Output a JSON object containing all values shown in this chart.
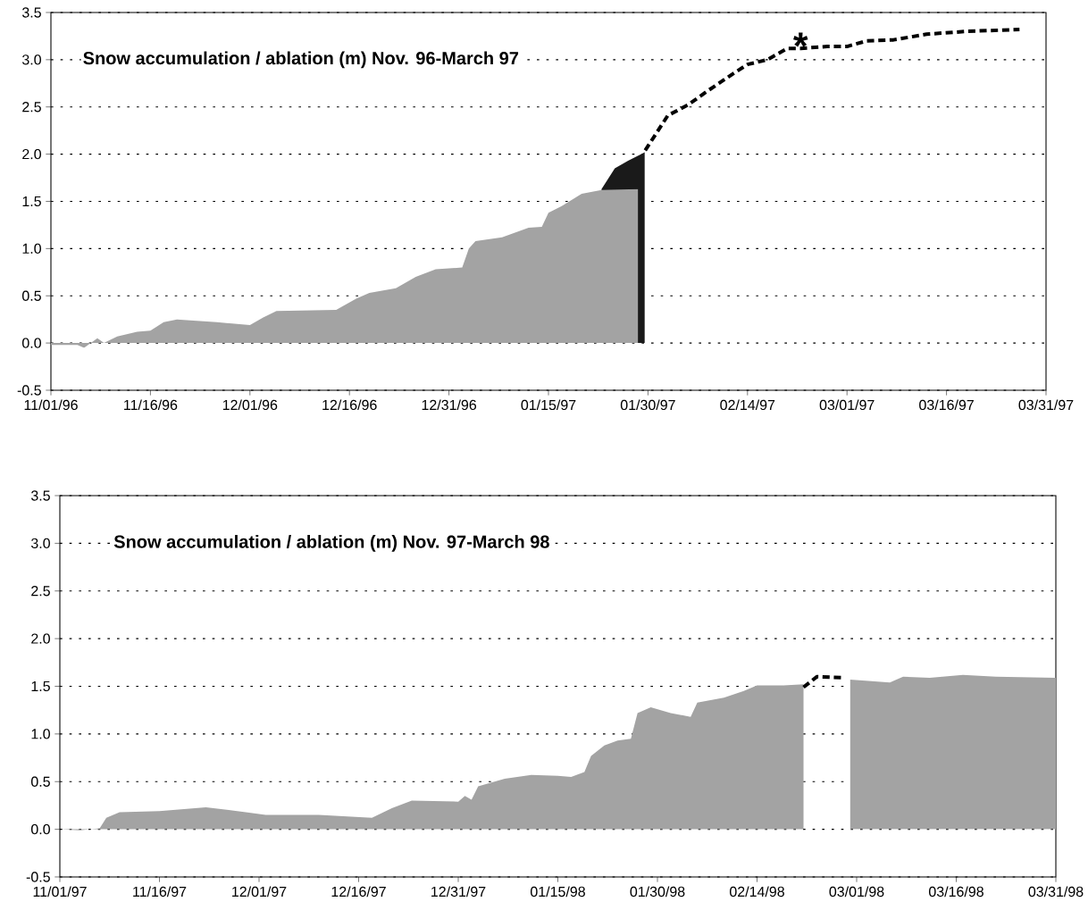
{
  "chart_data": [
    {
      "type": "area",
      "title": "Snow accumulation / ablation (m) Nov. 96-March 97",
      "xlim": [
        "1996-11-01",
        "1997-03-31"
      ],
      "ylim": [
        -0.5,
        3.5
      ],
      "grid": "y",
      "xticks": [
        {
          "value": "1996-11-01",
          "label": "11/01/96"
        },
        {
          "value": "1996-11-16",
          "label": "11/16/96"
        },
        {
          "value": "1996-12-01",
          "label": "12/01/96"
        },
        {
          "value": "1996-12-16",
          "label": "12/16/96"
        },
        {
          "value": "1996-12-31",
          "label": "12/31/96"
        },
        {
          "value": "1997-01-15",
          "label": "01/15/97"
        },
        {
          "value": "1997-01-30",
          "label": "01/30/97"
        },
        {
          "value": "1997-02-14",
          "label": "02/14/97"
        },
        {
          "value": "1997-03-01",
          "label": "03/01/97"
        },
        {
          "value": "1997-03-16",
          "label": "03/16/97"
        },
        {
          "value": "1997-03-31",
          "label": "03/31/97"
        }
      ],
      "yticks": [
        {
          "value": -0.5,
          "label": "-0.5"
        },
        {
          "value": 0,
          "label": "0.0"
        },
        {
          "value": 0.5,
          "label": "0.5"
        },
        {
          "value": 1,
          "label": "1.0"
        },
        {
          "value": 1.5,
          "label": "1.5"
        },
        {
          "value": 2,
          "label": "2.0"
        },
        {
          "value": 2.5,
          "label": "2.5"
        },
        {
          "value": 3,
          "label": "3.0"
        },
        {
          "value": 3.5,
          "label": "3.5"
        }
      ],
      "annotations": [
        {
          "text": "*",
          "x": "1997-02-22",
          "y": 3.12
        }
      ],
      "series": [
        {
          "color": "#1a1a1a",
          "x": [
            "1997-01-23",
            "1997-01-25",
            "1997-01-27",
            "1997-01-29",
            "1997-01-29T12:00"
          ],
          "values": [
            1.63,
            1.85,
            1.93,
            2.0,
            2.02
          ]
        },
        {
          "color": "#a3a3a3",
          "x": [
            "1996-11-01",
            "1996-11-05",
            "1996-11-06",
            "1996-11-08",
            "1996-11-09",
            "1996-11-11",
            "1996-11-14",
            "1996-11-16",
            "1996-11-18",
            "1996-11-20",
            "1996-11-26",
            "1996-12-01",
            "1996-12-03",
            "1996-12-05",
            "1996-12-14",
            "1996-12-17",
            "1996-12-19",
            "1996-12-23",
            "1996-12-26",
            "1996-12-29",
            "1997-01-02",
            "1997-01-03",
            "1997-01-04",
            "1997-01-08",
            "1997-01-12",
            "1997-01-14",
            "1997-01-15",
            "1997-01-17",
            "1997-01-20",
            "1997-01-23",
            "1997-01-28T12:00"
          ],
          "values": [
            -0.02,
            -0.02,
            -0.05,
            0.05,
            0.0,
            0.07,
            0.12,
            0.13,
            0.22,
            0.25,
            0.22,
            0.19,
            0.27,
            0.34,
            0.35,
            0.47,
            0.53,
            0.58,
            0.7,
            0.78,
            0.8,
            1.0,
            1.08,
            1.12,
            1.22,
            1.23,
            1.38,
            1.45,
            1.58,
            1.62,
            1.63
          ]
        },
        {
          "type": "line",
          "line_style": "dashed",
          "color": "#000000",
          "x": [
            "1997-01-29T14:00",
            "1997-02-02",
            "1997-02-05",
            "1997-02-08",
            "1997-02-12",
            "1997-02-14",
            "1997-02-17",
            "1997-02-20",
            "1997-02-22",
            "1997-02-26",
            "1997-03-01",
            "1997-03-04",
            "1997-03-08",
            "1997-03-13",
            "1997-03-19",
            "1997-03-27"
          ],
          "values": [
            2.04,
            2.41,
            2.52,
            2.67,
            2.86,
            2.95,
            3.0,
            3.12,
            3.12,
            3.14,
            3.14,
            3.2,
            3.21,
            3.27,
            3.3,
            3.32
          ]
        }
      ]
    },
    {
      "type": "area",
      "title": "Snow accumulation / ablation (m) Nov. 97-March 98",
      "xlim": [
        "1997-11-01",
        "1998-03-31"
      ],
      "ylim": [
        -0.5,
        3.5
      ],
      "grid": "y",
      "xticks": [
        {
          "value": "1997-11-01",
          "label": "11/01/97"
        },
        {
          "value": "1997-11-16",
          "label": "11/16/97"
        },
        {
          "value": "1997-12-01",
          "label": "12/01/97"
        },
        {
          "value": "1997-12-16",
          "label": "12/16/97"
        },
        {
          "value": "1997-12-31",
          "label": "12/31/97"
        },
        {
          "value": "1998-01-15",
          "label": "01/15/98"
        },
        {
          "value": "1998-01-30",
          "label": "01/30/98"
        },
        {
          "value": "1998-02-14",
          "label": "02/14/98"
        },
        {
          "value": "1998-03-01",
          "label": "03/01/98"
        },
        {
          "value": "1998-03-16",
          "label": "03/16/98"
        },
        {
          "value": "1998-03-31",
          "label": "03/31/98"
        }
      ],
      "yticks": [
        {
          "value": -0.5,
          "label": "-0.5"
        },
        {
          "value": 0,
          "label": "0.0"
        },
        {
          "value": 0.5,
          "label": "0.5"
        },
        {
          "value": 1,
          "label": "1.0"
        },
        {
          "value": 1.5,
          "label": "1.5"
        },
        {
          "value": 2,
          "label": "2.0"
        },
        {
          "value": 2.5,
          "label": "2.5"
        },
        {
          "value": 3,
          "label": "3.0"
        },
        {
          "value": 3.5,
          "label": "3.5"
        }
      ],
      "series": [
        {
          "color": "#a3a3a3",
          "x": [
            "1997-11-01",
            "1997-11-04",
            "1997-11-07",
            "1997-11-08",
            "1997-11-10",
            "1997-11-16",
            "1997-11-23",
            "1997-11-29",
            "1997-12-02",
            "1997-12-10",
            "1997-12-18",
            "1997-12-21",
            "1997-12-24",
            "1997-12-31",
            "1998-01-01",
            "1998-01-02",
            "1998-01-03",
            "1998-01-07",
            "1998-01-11",
            "1998-01-15",
            "1998-01-17",
            "1998-01-19",
            "1998-01-20",
            "1998-01-22",
            "1998-01-24",
            "1998-01-26",
            "1998-01-27",
            "1998-01-29",
            "1998-02-01",
            "1998-02-04",
            "1998-02-05",
            "1998-02-09",
            "1998-02-12",
            "1998-02-14",
            "1998-02-18",
            "1998-02-21",
            "1998-02-22",
            "1998-02-28",
            "1998-03-06",
            "1998-03-08",
            "1998-03-12",
            "1998-03-17",
            "1998-03-22",
            "1998-03-31"
          ],
          "values": [
            0.0,
            -0.01,
            0.01,
            0.12,
            0.18,
            0.19,
            0.23,
            0.18,
            0.15,
            0.15,
            0.12,
            0.22,
            0.3,
            0.29,
            0.35,
            0.31,
            0.45,
            0.53,
            0.57,
            0.56,
            0.55,
            0.6,
            0.77,
            0.88,
            0.93,
            0.95,
            1.22,
            1.28,
            1.22,
            1.18,
            1.33,
            1.38,
            1.45,
            1.51,
            1.51,
            1.52,
            null,
            1.57,
            1.54,
            1.6,
            1.59,
            1.62,
            1.6,
            1.59
          ]
        },
        {
          "type": "line",
          "line_style": "dashed",
          "color": "#000000",
          "x": [
            "1998-02-21",
            "1998-02-23",
            "1998-02-27"
          ],
          "values": [
            1.49,
            1.6,
            1.59
          ]
        }
      ]
    }
  ]
}
